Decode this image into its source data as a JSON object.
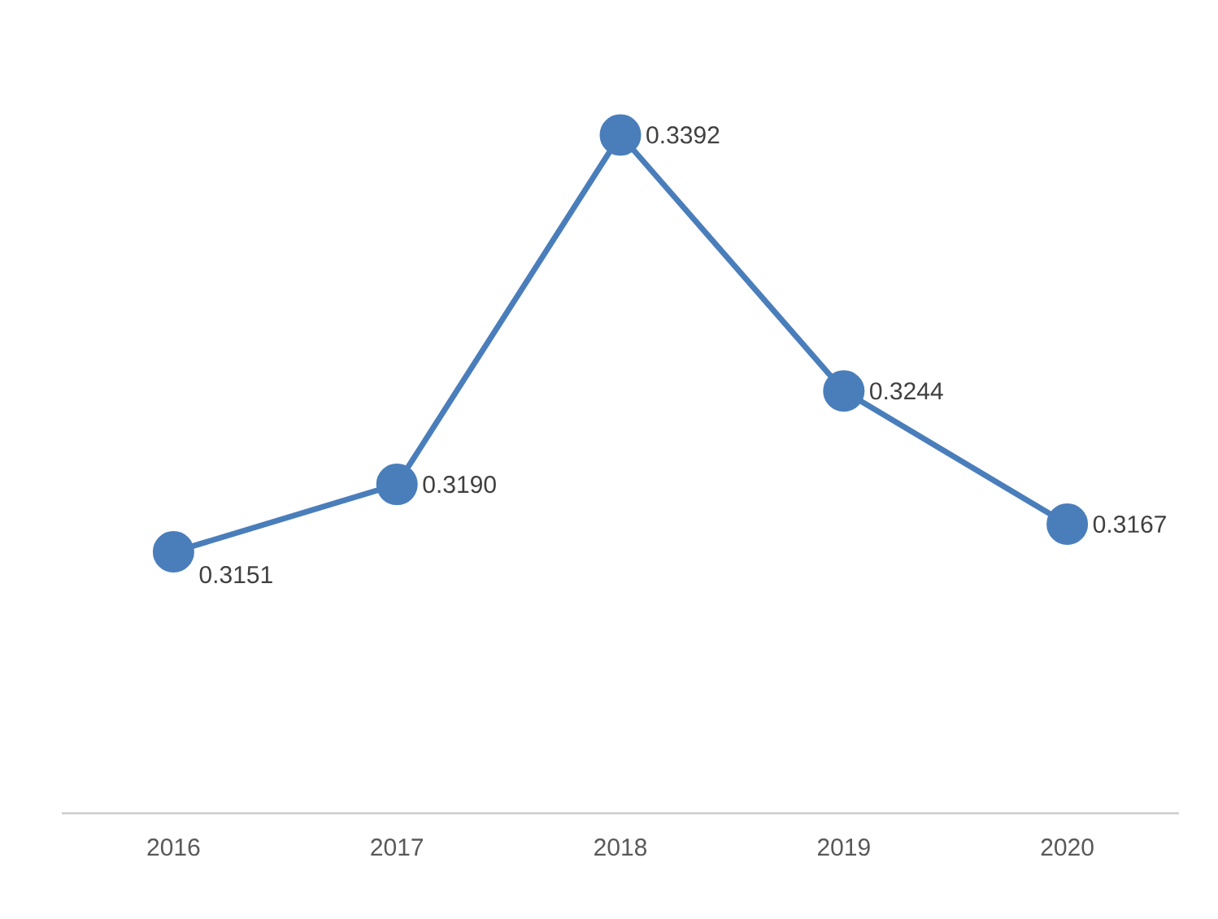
{
  "chart_data": {
    "type": "line",
    "categories": [
      "2016",
      "2017",
      "2018",
      "2019",
      "2020"
    ],
    "values": [
      0.3151,
      0.319,
      0.3392,
      0.3244,
      0.3167
    ],
    "value_labels": [
      "0.3151",
      "0.3190",
      "0.3392",
      "0.3244",
      "0.3167"
    ],
    "color": "#4a7ebb",
    "marker": "circle",
    "line_style": "solid",
    "tick_labels": "x",
    "grid": false
  }
}
